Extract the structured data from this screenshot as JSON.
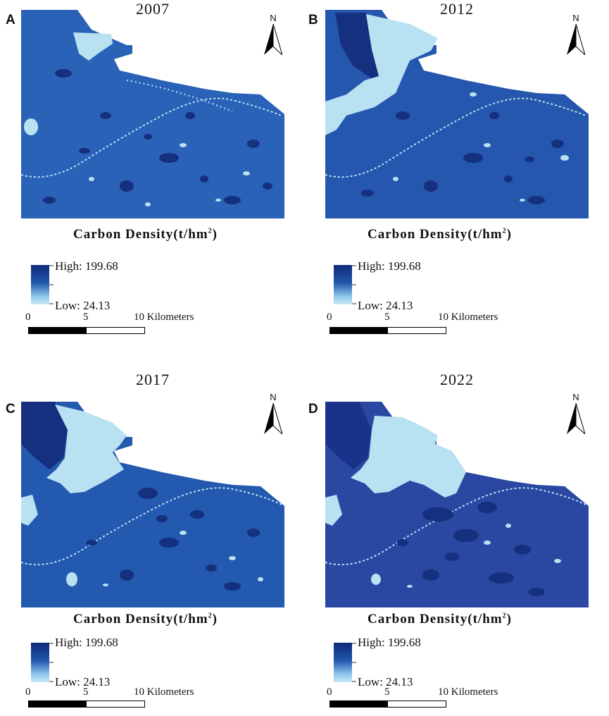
{
  "panels": [
    {
      "letter": "A",
      "year": "2007"
    },
    {
      "letter": "B",
      "year": "2012"
    },
    {
      "letter": "C",
      "year": "2017"
    },
    {
      "letter": "D",
      "year": "2022"
    }
  ],
  "north_label": "N",
  "legend": {
    "title_main": "Carbon Density(t/hm",
    "title_sup": "2",
    "title_end": ")",
    "high_label": "High: 199.68",
    "low_label": "Low: 24.13",
    "high_color": "#102a78",
    "low_color": "#c8eaf6"
  },
  "scale": {
    "zero": "0",
    "mid": "5",
    "end": "10 Kilometers"
  },
  "colors": {
    "base_2007": "#2a62b8",
    "base_2012": "#2557ae",
    "base_2017": "#2359ae",
    "base_2022": "#2a47a2",
    "dark": "#14307e",
    "light": "#b8e2f2"
  }
}
